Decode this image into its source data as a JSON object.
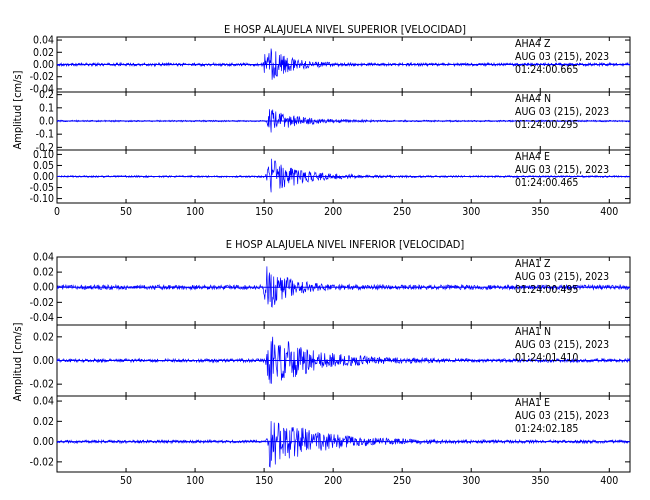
{
  "chart_data": [
    {
      "type": "line",
      "title": "E HOSP ALAJUELA NIVEL SUPERIOR [VELOCIDAD]",
      "ylabel": "Amplitud [cm/s]",
      "xlim": [
        0,
        415
      ],
      "x_ticks": [
        0,
        50,
        100,
        150,
        200,
        250,
        300,
        350,
        400
      ],
      "x_tick_labels": [
        "0",
        "50",
        "100",
        "150",
        "200",
        "250",
        "300",
        "350",
        "400"
      ],
      "grid": false,
      "color": "#0000ff",
      "traces": [
        {
          "station": "AHA4",
          "component": "Z",
          "date": "AUG 03 (215), 2023",
          "time": "01:24:00.665",
          "ylim": [
            -0.045,
            0.045
          ],
          "y_ticks": [
            0.04,
            0.02,
            0.0,
            -0.02,
            -0.04
          ],
          "y_tick_labels": [
            "0.04",
            "0.02",
            "0.00",
            "-0.02",
            "-0.04"
          ],
          "noise": 0.0025,
          "events": [
            {
              "t": 150,
              "peak": 0.035,
              "decay": 14
            }
          ]
        },
        {
          "station": "AHA4",
          "component": "N",
          "date": "AUG 03 (215), 2023",
          "time": "01:24:00.295",
          "ylim": [
            -0.22,
            0.22
          ],
          "y_ticks": [
            0.2,
            0.1,
            0.0,
            -0.1,
            -0.2
          ],
          "y_tick_labels": [
            "0.2",
            "0.1",
            "0.0",
            "-0.1",
            "-0.2"
          ],
          "noise": 0.006,
          "events": [
            {
              "t": 152,
              "peak": 0.1,
              "decay": 20
            }
          ]
        },
        {
          "station": "AHA4",
          "component": "E",
          "date": "AUG 03 (215), 2023",
          "time": "01:24:00.465",
          "ylim": [
            -0.12,
            0.12
          ],
          "y_ticks": [
            0.1,
            0.05,
            0.0,
            -0.05,
            -0.1
          ],
          "y_tick_labels": [
            "0.10",
            "0.05",
            "0.00",
            "-0.05",
            "-0.10"
          ],
          "noise": 0.004,
          "events": [
            {
              "t": 152,
              "peak": 0.09,
              "decay": 22
            }
          ]
        }
      ]
    },
    {
      "type": "line",
      "title": "E HOSP ALAJUELA NIVEL INFERIOR [VELOCIDAD]",
      "ylabel": "Amplitud [cm/s]",
      "xlim": [
        0,
        415
      ],
      "x_ticks": [
        50,
        100,
        150,
        200,
        250,
        300,
        350,
        400
      ],
      "x_tick_labels": [
        "50",
        "100",
        "150",
        "200",
        "250",
        "300",
        "350",
        "400"
      ],
      "grid": false,
      "color": "#0000ff",
      "traces": [
        {
          "station": "AHA1",
          "component": "Z",
          "date": "AUG 03 (215), 2023",
          "time": "01:24:00.495",
          "ylim": [
            -0.05,
            0.04
          ],
          "y_ticks": [
            0.04,
            0.02,
            0.0,
            -0.02,
            -0.04
          ],
          "y_tick_labels": [
            "0.04",
            "0.02",
            "0.00",
            "-0.02",
            "-0.04"
          ],
          "noise": 0.003,
          "events": [
            {
              "t": 150,
              "peak": 0.035,
              "decay": 15
            }
          ]
        },
        {
          "station": "AHA1",
          "component": "N",
          "date": "AUG 03 (215), 2023",
          "time": "01:24:01.410",
          "ylim": [
            -0.03,
            0.03
          ],
          "y_ticks": [
            0.02,
            0.0,
            -0.02
          ],
          "y_tick_labels": [
            "0.02",
            "0.00",
            "-0.02"
          ],
          "noise": 0.0015,
          "events": [
            {
              "t": 152,
              "peak": 0.025,
              "decay": 30
            }
          ]
        },
        {
          "station": "AHA1",
          "component": "E",
          "date": "AUG 03 (215), 2023",
          "time": "01:24:02.185",
          "ylim": [
            -0.03,
            0.045
          ],
          "y_ticks": [
            0.04,
            0.02,
            0.0,
            -0.02
          ],
          "y_tick_labels": [
            "0.04",
            "0.02",
            "0.00",
            "-0.02"
          ],
          "noise": 0.0015,
          "events": [
            {
              "t": 152,
              "peak": 0.028,
              "decay": 32
            }
          ]
        }
      ]
    }
  ]
}
